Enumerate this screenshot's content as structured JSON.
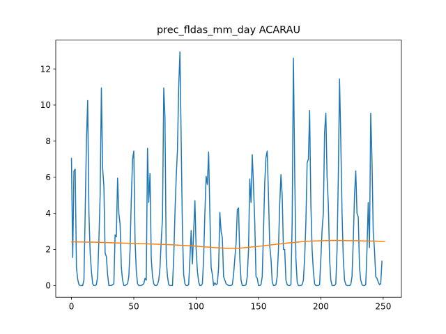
{
  "chart_data": {
    "type": "line",
    "title": "prec_fldas_mm_day ACARAU",
    "xlabel": "",
    "ylabel": "",
    "xlim": [
      -12.6,
      264.6
    ],
    "ylim": [
      -0.65,
      13.6
    ],
    "x_ticks": [
      0,
      50,
      100,
      150,
      200,
      250
    ],
    "x_tick_labels": [
      "0",
      "50",
      "100",
      "150",
      "200",
      "250"
    ],
    "y_ticks": [
      0,
      2,
      4,
      6,
      8,
      10,
      12
    ],
    "y_tick_labels": [
      "0",
      "2",
      "4",
      "6",
      "8",
      "10",
      "12"
    ],
    "grid": false,
    "legend": null,
    "series": [
      {
        "color": "#1f77b4",
        "x_start": 0,
        "values": [
          7.05,
          1.55,
          6.35,
          6.45,
          1.0,
          0.35,
          0.05,
          0.0,
          0.0,
          0.0,
          0.3,
          4.0,
          8.0,
          10.25,
          4.0,
          1.8,
          0.8,
          0.1,
          0.0,
          0.0,
          0.05,
          0.5,
          2.5,
          5.0,
          10.95,
          6.5,
          5.5,
          1.8,
          1.6,
          0.6,
          0.0,
          0.0,
          0.0,
          0.05,
          0.1,
          2.8,
          2.7,
          5.95,
          4.0,
          3.4,
          1.0,
          0.3,
          0.0,
          0.0,
          0.05,
          0.1,
          0.5,
          2.0,
          4.8,
          7.0,
          7.45,
          2.5,
          0.8,
          0.1,
          0.0,
          0.0,
          0.0,
          0.05,
          0.1,
          0.4,
          0.3,
          7.6,
          4.6,
          6.2,
          1.5,
          0.5,
          0.1,
          0.0,
          0.0,
          0.05,
          0.3,
          1.0,
          2.5,
          3.7,
          10.95,
          9.3,
          1.5,
          0.5,
          0.05,
          0.0,
          0.0,
          0.0,
          1.5,
          4.0,
          6.0,
          7.5,
          11.0,
          12.95,
          8.0,
          3.0,
          0.6,
          0.1,
          0.0,
          0.0,
          0.05,
          1.5,
          3.05,
          1.2,
          3.0,
          4.7,
          2.0,
          0.8,
          0.2,
          0.0,
          0.0,
          0.1,
          1.5,
          4.0,
          6.05,
          5.6,
          7.4,
          4.0,
          1.0,
          0.6,
          0.0,
          0.15,
          0.05,
          0.1,
          1.0,
          4.05,
          3.0,
          2.65,
          0.5,
          0.3,
          0.1,
          0.05,
          0.0,
          0.0,
          0.0,
          0.05,
          0.6,
          1.5,
          2.3,
          4.2,
          4.3,
          1.5,
          0.3,
          0.0,
          0.0,
          0.0,
          0.05,
          0.5,
          2.0,
          5.9,
          4.6,
          7.25,
          5.5,
          3.5,
          0.5,
          0.4,
          0.0,
          0.0,
          0.05,
          0.5,
          3.0,
          5.7,
          7.1,
          7.45,
          5.0,
          2.2,
          1.5,
          0.2,
          0.0,
          0.0,
          0.05,
          0.5,
          2.0,
          4.5,
          6.15,
          5.0,
          2.0,
          2.0,
          0.3,
          0.05,
          0.0,
          0.0,
          0.05,
          3.5,
          12.6,
          6.5,
          1.5,
          0.2,
          0.0,
          0.0,
          0.0,
          0.05,
          0.3,
          1.5,
          3.5,
          6.8,
          7.0,
          9.7,
          4.5,
          2.0,
          0.8,
          0.1,
          0.0,
          0.0,
          0.0,
          0.05,
          1.5,
          3.1,
          4.0,
          8.5,
          9.55,
          6.0,
          4.5,
          1.5,
          0.3,
          0.0,
          0.0,
          0.0,
          0.1,
          2.0,
          6.0,
          11.45,
          8.0,
          4.0,
          1.5,
          0.3,
          0.05,
          0.0,
          0.0,
          0.0,
          0.05,
          0.5,
          2.5,
          5.0,
          6.35,
          4.0,
          3.8,
          1.0,
          0.3,
          0.05,
          0.0,
          0.0,
          0.05,
          2.0,
          4.6,
          2.1,
          9.55,
          7.0,
          3.0,
          2.0,
          0.5,
          0.4,
          0.2,
          0.05,
          0.1,
          1.35
        ]
      },
      {
        "color": "#ff7f0e",
        "x": [
          0,
          20,
          40,
          60,
          80,
          100,
          115,
          125,
          135,
          150,
          170,
          190,
          210,
          230,
          251
        ],
        "values": [
          2.42,
          2.4,
          2.35,
          2.31,
          2.26,
          2.18,
          2.1,
          2.06,
          2.07,
          2.17,
          2.33,
          2.46,
          2.5,
          2.48,
          2.45
        ]
      }
    ]
  }
}
